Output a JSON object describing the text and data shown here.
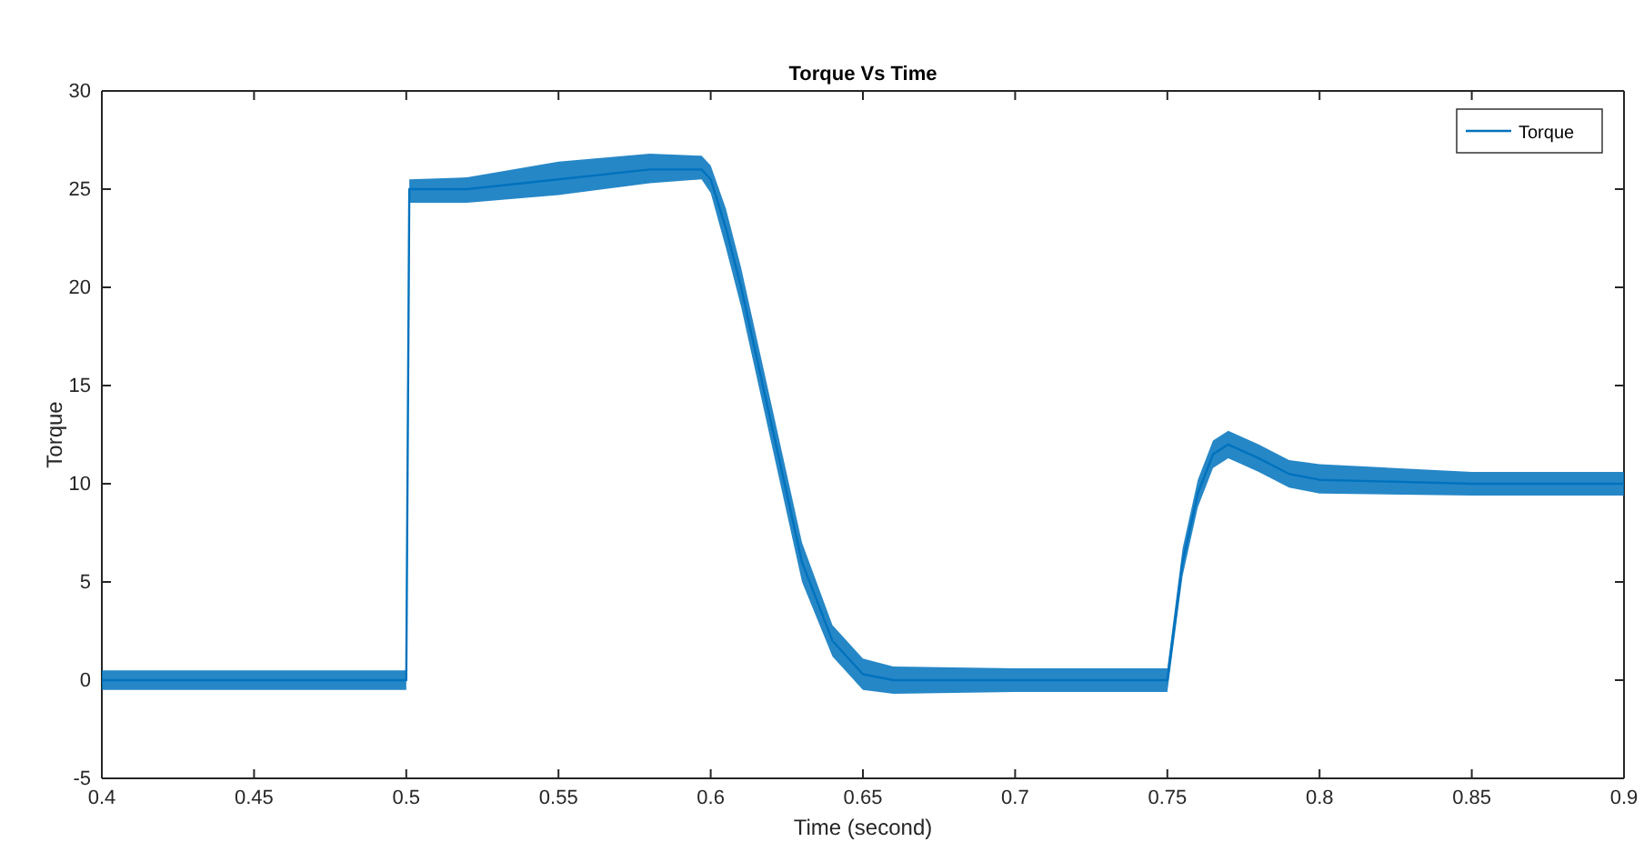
{
  "chart_data": {
    "type": "line",
    "title": "Torque Vs Time",
    "xlabel": "Time (second)",
    "ylabel": "Torque",
    "x": [
      0.4,
      0.45,
      0.5,
      0.501,
      0.52,
      0.55,
      0.58,
      0.597,
      0.6,
      0.605,
      0.61,
      0.62,
      0.63,
      0.64,
      0.65,
      0.66,
      0.7,
      0.75,
      0.755,
      0.76,
      0.765,
      0.77,
      0.78,
      0.79,
      0.8,
      0.85,
      0.9
    ],
    "series": [
      {
        "name": "Torque",
        "color": "#0072bd",
        "values": [
          0,
          0,
          0,
          25,
          25,
          25.5,
          26,
          26,
          25.5,
          23,
          20,
          13,
          6,
          2,
          0.3,
          0,
          0,
          0,
          6,
          9.5,
          11.5,
          12,
          11.3,
          10.5,
          10.2,
          10,
          10
        ],
        "lower": [
          -0.5,
          -0.5,
          -0.5,
          24.3,
          24.3,
          24.7,
          25.3,
          25.5,
          24.8,
          22,
          19,
          12,
          5,
          1.2,
          -0.5,
          -0.7,
          -0.6,
          -0.6,
          5.3,
          8.8,
          10.8,
          11.3,
          10.6,
          9.8,
          9.5,
          9.4,
          9.4
        ],
        "upper": [
          0.5,
          0.5,
          0.5,
          25.5,
          25.6,
          26.4,
          26.8,
          26.7,
          26.2,
          24,
          21,
          14,
          7,
          2.8,
          1.1,
          0.7,
          0.6,
          0.6,
          6.7,
          10.2,
          12.2,
          12.7,
          12,
          11.2,
          11,
          10.6,
          10.6
        ]
      }
    ],
    "xlim": [
      0.4,
      0.9
    ],
    "xticks": [
      0.4,
      0.45,
      0.5,
      0.55,
      0.6,
      0.65,
      0.7,
      0.75,
      0.8,
      0.85,
      0.9
    ],
    "ylim": [
      -5,
      30
    ],
    "yticks": [
      -5,
      0,
      5,
      10,
      15,
      20,
      25,
      30
    ],
    "legend": "top right",
    "grid": false,
    "marker": "none",
    "line_style": "solid"
  }
}
